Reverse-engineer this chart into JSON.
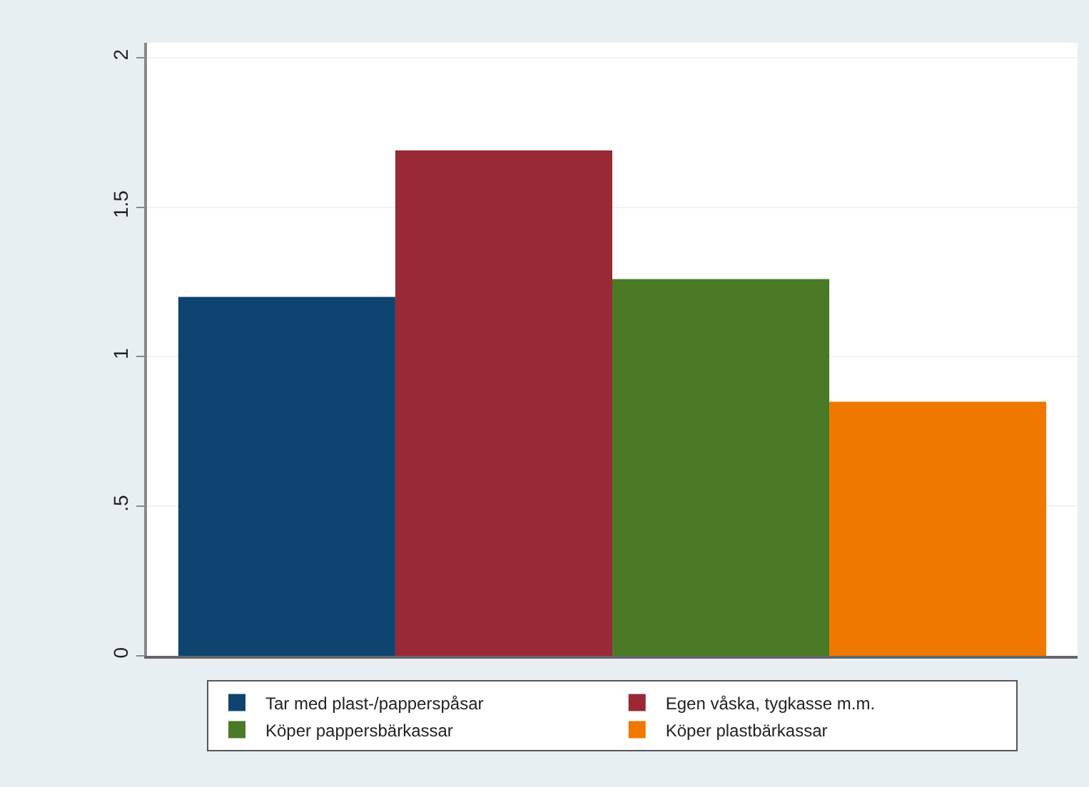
{
  "chart_data": {
    "type": "bar",
    "categories": [
      null
    ],
    "series": [
      {
        "name": "Tar med plast-/papperspåsar",
        "color": "#0f4471",
        "values": [
          1.2
        ]
      },
      {
        "name": "Egen våska, tygkasse m.m.",
        "color": "#992935",
        "values": [
          1.69
        ]
      },
      {
        "name": "Köper pappersbärkassar",
        "color": "#4a7a25",
        "values": [
          1.26
        ]
      },
      {
        "name": "Köper plastbärkassar",
        "color": "#ee7800",
        "values": [
          0.85
        ]
      }
    ],
    "ylim": [
      0,
      2.05
    ],
    "yticks": [
      0,
      {
        "value": 0.5,
        "label": ".5"
      },
      1,
      1.5,
      2
    ],
    "grid": "y",
    "legend": "bottom",
    "tick_labels": "y"
  }
}
